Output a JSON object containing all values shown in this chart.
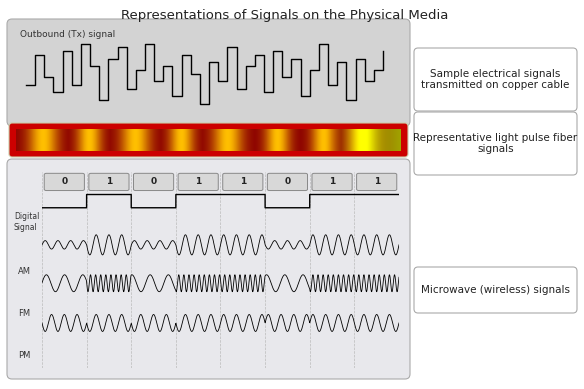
{
  "title": "Representations of Signals on the Physical Media",
  "title_fontsize": 9.5,
  "background_color": "#ffffff",
  "panel1_bg": "#d3d3d3",
  "panel1_label": "Outbound (Tx) signal",
  "panel3_bg": "#e8e8ec",
  "box1_text": "Sample electrical signals\ntransmitted on copper cable",
  "box2_text": "Representative light pulse fiber\nsignals",
  "box3_text": "Microwave (wireless) signals",
  "bits": [
    0,
    1,
    0,
    1,
    1,
    0,
    1,
    1
  ],
  "digital_label": "Digital\nSignal",
  "am_label": "AM",
  "fm_label": "FM",
  "pm_label": "PM",
  "signal_steps": [
    0.35,
    0.75,
    0.45,
    0.25,
    0.8,
    0.35,
    0.9,
    0.6,
    0.15,
    0.7,
    0.85,
    0.3,
    0.55,
    0.9,
    0.4,
    0.6,
    0.2,
    0.75,
    0.5,
    0.1,
    0.65,
    0.4,
    0.85,
    0.3,
    0.6,
    0.75,
    0.25,
    0.8,
    0.45,
    0.7,
    0.2,
    0.55,
    0.9,
    0.35,
    0.65,
    0.15,
    0.7,
    0.4,
    0.55,
    0.8
  ]
}
